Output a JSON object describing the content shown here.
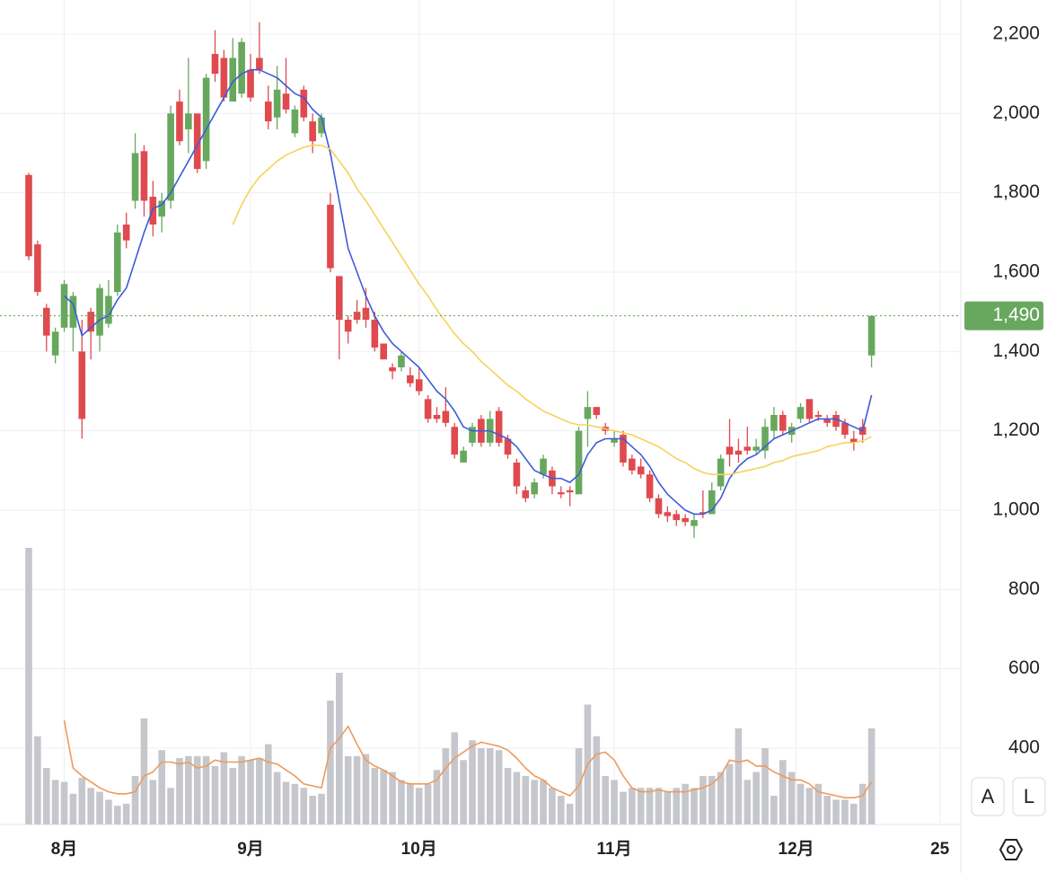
{
  "chart_data": {
    "type": "candlestick",
    "x": [
      0,
      1,
      2,
      3,
      4,
      5,
      6,
      7,
      8,
      9,
      10,
      11,
      12,
      13,
      14,
      15,
      16,
      17,
      18,
      19,
      20,
      21,
      22,
      23,
      24,
      25,
      26,
      27,
      28,
      29,
      30,
      31,
      32,
      33,
      34,
      35,
      36,
      37,
      38,
      39,
      40,
      41,
      42,
      43,
      44,
      45,
      46,
      47,
      48,
      49,
      50,
      51,
      52,
      53,
      54,
      55,
      56,
      57,
      58,
      59,
      60,
      61,
      62,
      63,
      64,
      65,
      66,
      67,
      68,
      69,
      70,
      71,
      72,
      73,
      74,
      75,
      76,
      77,
      78,
      79,
      80,
      81,
      82,
      83,
      84,
      85,
      86,
      87,
      88,
      89,
      90,
      91,
      92,
      93,
      94,
      95
    ],
    "open": [
      1845,
      1670,
      1510,
      1390,
      1460,
      1460,
      1400,
      1500,
      1440,
      1470,
      1550,
      1720,
      1780,
      1905,
      1790,
      1740,
      1780,
      2030,
      1960,
      2000,
      1880,
      2150,
      2140,
      2030,
      2050,
      2110,
      2140,
      2030,
      1990,
      2050,
      1950,
      2060,
      1980,
      1950,
      1770,
      1590,
      1480,
      1500,
      1510,
      1480,
      1420,
      1360,
      1360,
      1340,
      1330,
      1280,
      1240,
      1250,
      1210,
      1120,
      1170,
      1230,
      1170,
      1250,
      1180,
      1120,
      1050,
      1040,
      1090,
      1100,
      1045,
      1050,
      1040,
      1230,
      1260,
      1210,
      1170,
      1190,
      1130,
      1110,
      1090,
      1030,
      995,
      990,
      980,
      960,
      995,
      990,
      1060,
      1160,
      1150,
      1160,
      1150,
      1150,
      1200,
      1240,
      1190,
      1230,
      1280,
      1240,
      1230,
      1240,
      1220,
      1180,
      1210,
      1390
    ],
    "high": [
      1850,
      1680,
      1520,
      1460,
      1580,
      1550,
      1480,
      1510,
      1570,
      1580,
      1720,
      1750,
      1950,
      1920,
      1830,
      1800,
      2020,
      2060,
      2140,
      2000,
      2100,
      2210,
      2160,
      2190,
      2190,
      2150,
      2230,
      2070,
      2120,
      2140,
      2020,
      2070,
      2000,
      2000,
      1800,
      1590,
      1490,
      1530,
      1560,
      1500,
      1420,
      1370,
      1400,
      1360,
      1360,
      1290,
      1260,
      1310,
      1220,
      1160,
      1220,
      1240,
      1250,
      1260,
      1190,
      1130,
      1060,
      1080,
      1140,
      1110,
      1060,
      1060,
      1210,
      1300,
      1260,
      1220,
      1200,
      1200,
      1140,
      1130,
      1100,
      1040,
      1010,
      1000,
      990,
      990,
      1050,
      1070,
      1140,
      1230,
      1180,
      1210,
      1180,
      1230,
      1260,
      1250,
      1220,
      1270,
      1280,
      1250,
      1240,
      1250,
      1230,
      1200,
      1230,
      1490
    ],
    "low": [
      1630,
      1540,
      1400,
      1370,
      1450,
      1400,
      1180,
      1380,
      1400,
      1460,
      1540,
      1660,
      1760,
      1740,
      1690,
      1700,
      1760,
      1920,
      1900,
      1850,
      1860,
      2080,
      2030,
      2030,
      2040,
      2030,
      2100,
      1960,
      1960,
      2000,
      1940,
      1980,
      1900,
      1940,
      1600,
      1380,
      1420,
      1470,
      1460,
      1400,
      1380,
      1330,
      1350,
      1310,
      1290,
      1220,
      1220,
      1210,
      1130,
      1120,
      1160,
      1160,
      1160,
      1160,
      1130,
      1040,
      1020,
      1030,
      1080,
      1040,
      1030,
      1010,
      1040,
      1160,
      1230,
      1190,
      1160,
      1110,
      1090,
      1080,
      1020,
      980,
      970,
      960,
      960,
      930,
      980,
      990,
      1050,
      1110,
      1120,
      1140,
      1140,
      1130,
      1180,
      1190,
      1170,
      1220,
      1220,
      1225,
      1210,
      1200,
      1180,
      1150,
      1170,
      1360
    ],
    "close": [
      1640,
      1550,
      1440,
      1450,
      1570,
      1540,
      1230,
      1450,
      1560,
      1540,
      1700,
      1680,
      1900,
      1780,
      1720,
      1780,
      2000,
      1930,
      2000,
      1860,
      2090,
      2100,
      2040,
      2140,
      2180,
      2040,
      2110,
      1980,
      2060,
      2010,
      2010,
      1990,
      1930,
      1990,
      1610,
      1480,
      1450,
      1480,
      1480,
      1410,
      1380,
      1350,
      1390,
      1320,
      1300,
      1230,
      1230,
      1220,
      1140,
      1150,
      1210,
      1170,
      1230,
      1170,
      1140,
      1060,
      1030,
      1070,
      1130,
      1060,
      1040,
      1045,
      1200,
      1260,
      1240,
      1200,
      1180,
      1120,
      1100,
      1090,
      1030,
      990,
      985,
      975,
      970,
      975,
      990,
      1050,
      1130,
      1140,
      1140,
      1150,
      1160,
      1210,
      1240,
      1200,
      1210,
      1260,
      1230,
      1235,
      1220,
      1210,
      1190,
      1170,
      1190,
      1490
    ],
    "up_color": "#68a85e",
    "down_color": "#df4a4f",
    "series": [
      {
        "color": "#3d5bd9",
        "values": [
          null,
          null,
          null,
          null,
          1540,
          1520,
          1440,
          1460,
          1480,
          1490,
          1530,
          1560,
          1630,
          1700,
          1760,
          1770,
          1800,
          1840,
          1880,
          1920,
          1960,
          2000,
          2040,
          2080,
          2100,
          2110,
          2110,
          2100,
          2090,
          2070,
          2050,
          2040,
          2010,
          1990,
          1900,
          1780,
          1660,
          1600,
          1540,
          1490,
          1450,
          1420,
          1400,
          1380,
          1360,
          1330,
          1300,
          1280,
          1250,
          1210,
          1200,
          1200,
          1200,
          1190,
          1180,
          1160,
          1130,
          1100,
          1090,
          1080,
          1080,
          1070,
          1090,
          1140,
          1170,
          1180,
          1180,
          1180,
          1160,
          1140,
          1110,
          1070,
          1040,
          1020,
          1000,
          990,
          990,
          1000,
          1030,
          1080,
          1110,
          1130,
          1140,
          1160,
          1180,
          1190,
          1200,
          1210,
          1220,
          1230,
          1230,
          1230,
          1220,
          1210,
          1200,
          1290
        ]
      },
      {
        "color": "#f3d35a",
        "values": [
          null,
          null,
          null,
          null,
          null,
          null,
          null,
          null,
          null,
          null,
          null,
          null,
          null,
          null,
          null,
          null,
          null,
          null,
          null,
          null,
          null,
          null,
          null,
          1720,
          1770,
          1810,
          1840,
          1860,
          1880,
          1895,
          1905,
          1915,
          1920,
          1920,
          1910,
          1880,
          1850,
          1810,
          1780,
          1745,
          1710,
          1675,
          1640,
          1605,
          1570,
          1540,
          1505,
          1475,
          1445,
          1420,
          1400,
          1375,
          1355,
          1335,
          1315,
          1300,
          1280,
          1265,
          1250,
          1240,
          1230,
          1220,
          1215,
          1215,
          1210,
          1205,
          1200,
          1195,
          1190,
          1180,
          1170,
          1160,
          1145,
          1130,
          1120,
          1105,
          1095,
          1090,
          1090,
          1090,
          1095,
          1100,
          1105,
          1110,
          1120,
          1125,
          1135,
          1140,
          1145,
          1150,
          1160,
          1165,
          1170,
          1170,
          1175,
          1185
        ]
      }
    ],
    "volume": {
      "color": "#c6c7cc",
      "values": [
        905,
        430,
        350,
        320,
        315,
        285,
        325,
        300,
        290,
        270,
        255,
        260,
        330,
        475,
        320,
        395,
        300,
        375,
        380,
        380,
        380,
        355,
        390,
        350,
        380,
        370,
        375,
        410,
        340,
        315,
        310,
        300,
        280,
        285,
        520,
        590,
        380,
        380,
        385,
        350,
        345,
        340,
        320,
        310,
        300,
        310,
        345,
        400,
        440,
        370,
        420,
        400,
        400,
        395,
        350,
        340,
        330,
        320,
        320,
        300,
        280,
        260,
        400,
        510,
        430,
        330,
        320,
        290,
        300,
        300,
        300,
        300,
        290,
        300,
        310,
        300,
        330,
        330,
        340,
        360,
        450,
        320,
        340,
        400,
        280,
        370,
        340,
        310,
        300,
        310,
        280,
        270,
        270,
        260,
        310,
        450
      ]
    },
    "volume_ma": {
      "color": "#ee9a5c",
      "values": [
        null,
        null,
        null,
        null,
        470,
        350,
        330,
        315,
        300,
        290,
        285,
        285,
        290,
        330,
        340,
        365,
        365,
        360,
        365,
        350,
        355,
        370,
        365,
        365,
        365,
        370,
        375,
        365,
        360,
        345,
        330,
        310,
        305,
        300,
        400,
        425,
        455,
        410,
        370,
        355,
        345,
        330,
        315,
        310,
        310,
        310,
        320,
        350,
        375,
        390,
        405,
        415,
        410,
        405,
        395,
        375,
        350,
        330,
        320,
        300,
        290,
        280,
        305,
        360,
        385,
        390,
        370,
        330,
        300,
        290,
        290,
        295,
        290,
        290,
        290,
        295,
        300,
        310,
        330,
        370,
        365,
        370,
        355,
        355,
        340,
        330,
        320,
        320,
        310,
        290,
        285,
        280,
        275,
        275,
        280,
        315
      ]
    },
    "xlim": [
      -3.24,
      105.06
    ],
    "xticks": [
      {
        "value": 4,
        "label": "8月"
      },
      {
        "value": 25,
        "label": "9月"
      },
      {
        "value": 44,
        "label": "10月"
      },
      {
        "value": 66,
        "label": "11月"
      },
      {
        "value": 86.5,
        "label": "12月"
      },
      {
        "value": 102.7,
        "label": "25"
      }
    ],
    "ylim": [
      207.6,
      2286
    ],
    "yticks": [
      400,
      600,
      800,
      {
        "value": 1000,
        "label": "1,000"
      },
      {
        "value": 1200,
        "label": "1,200"
      },
      {
        "value": 1400,
        "label": "1,400"
      },
      {
        "value": 1600,
        "label": "1,600"
      },
      {
        "value": 1800,
        "label": "1,800"
      },
      {
        "value": 2000,
        "label": "2,000"
      },
      {
        "value": 2200,
        "label": "2,200"
      }
    ],
    "grid": true,
    "last_price": {
      "value": 1490,
      "label": "1,490",
      "color": "#68a85e"
    },
    "controls": [
      "A",
      "L"
    ]
  }
}
